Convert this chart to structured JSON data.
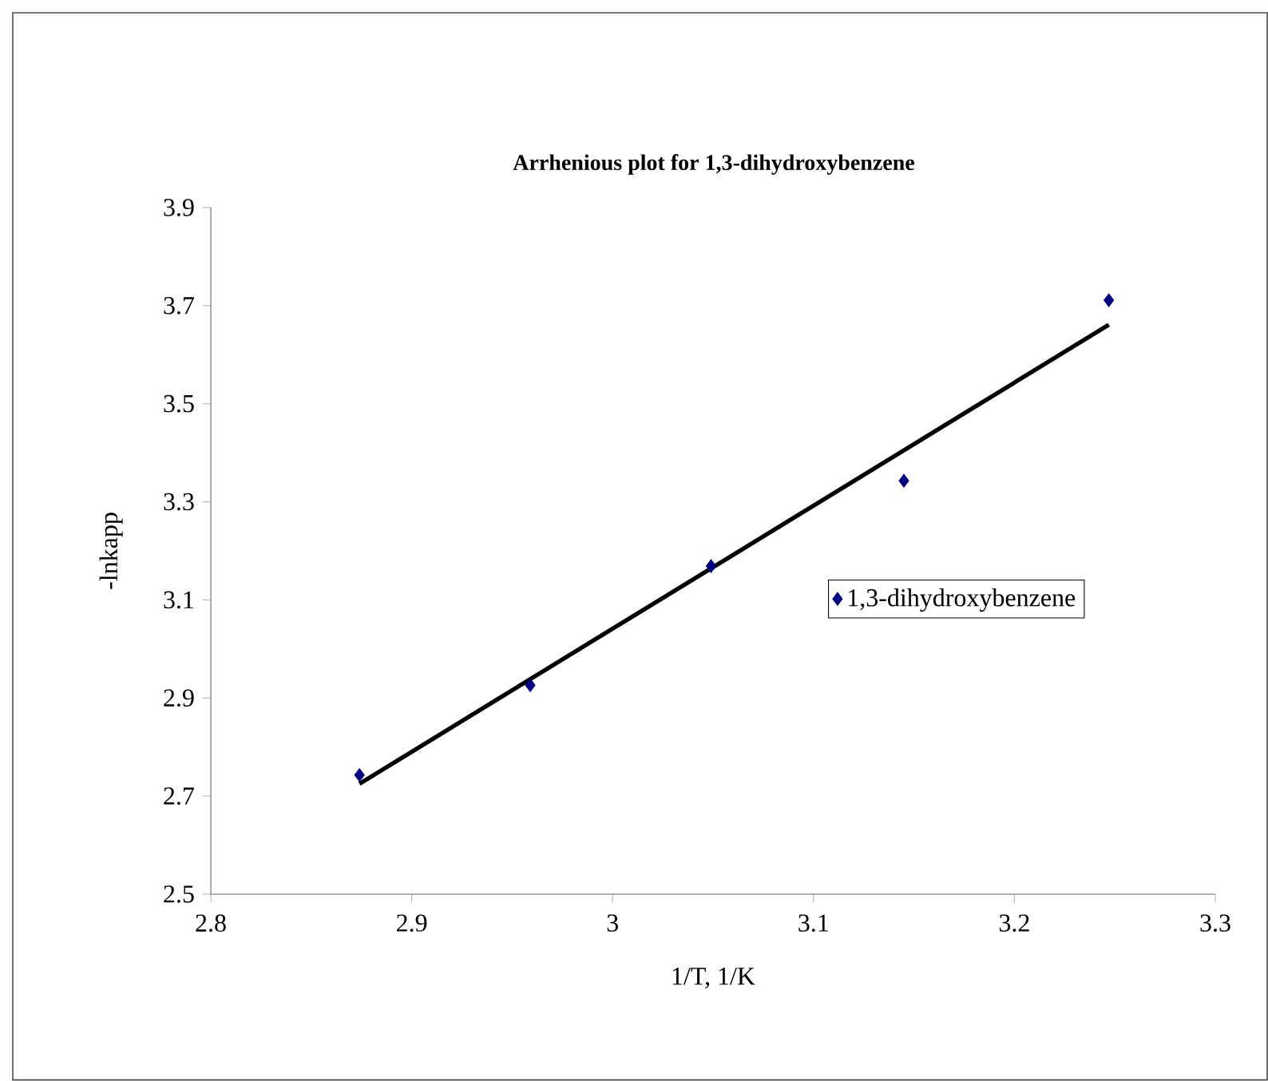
{
  "chart_data": {
    "type": "scatter",
    "title": "Arrhenious plot for 1,3-dihydroxybenzene",
    "xlabel": "1/T, 1/K",
    "ylabel": "-lnkapp",
    "series": [
      {
        "name": "1,3-dihydroxybenzene",
        "color": "#000080",
        "x": [
          2.874,
          2.959,
          3.049,
          3.145,
          3.247
        ],
        "values": [
          2.743,
          2.926,
          3.169,
          3.343,
          3.711
        ]
      },
      {
        "type": "line",
        "color": "#000000",
        "marker": "none",
        "x": [
          2.874,
          3.247
        ],
        "values": [
          2.725,
          3.661
        ]
      }
    ],
    "xlim": [
      2.8,
      3.3
    ],
    "xticks": [
      2.8,
      2.9,
      3,
      3.1,
      3.2,
      3.3
    ],
    "ylim": [
      2.5,
      3.9
    ],
    "yticks": [
      2.5,
      2.7,
      2.9,
      3.1,
      3.3,
      3.5,
      3.7,
      3.9
    ],
    "marker": "diamond",
    "legend": "right",
    "grid": false
  }
}
